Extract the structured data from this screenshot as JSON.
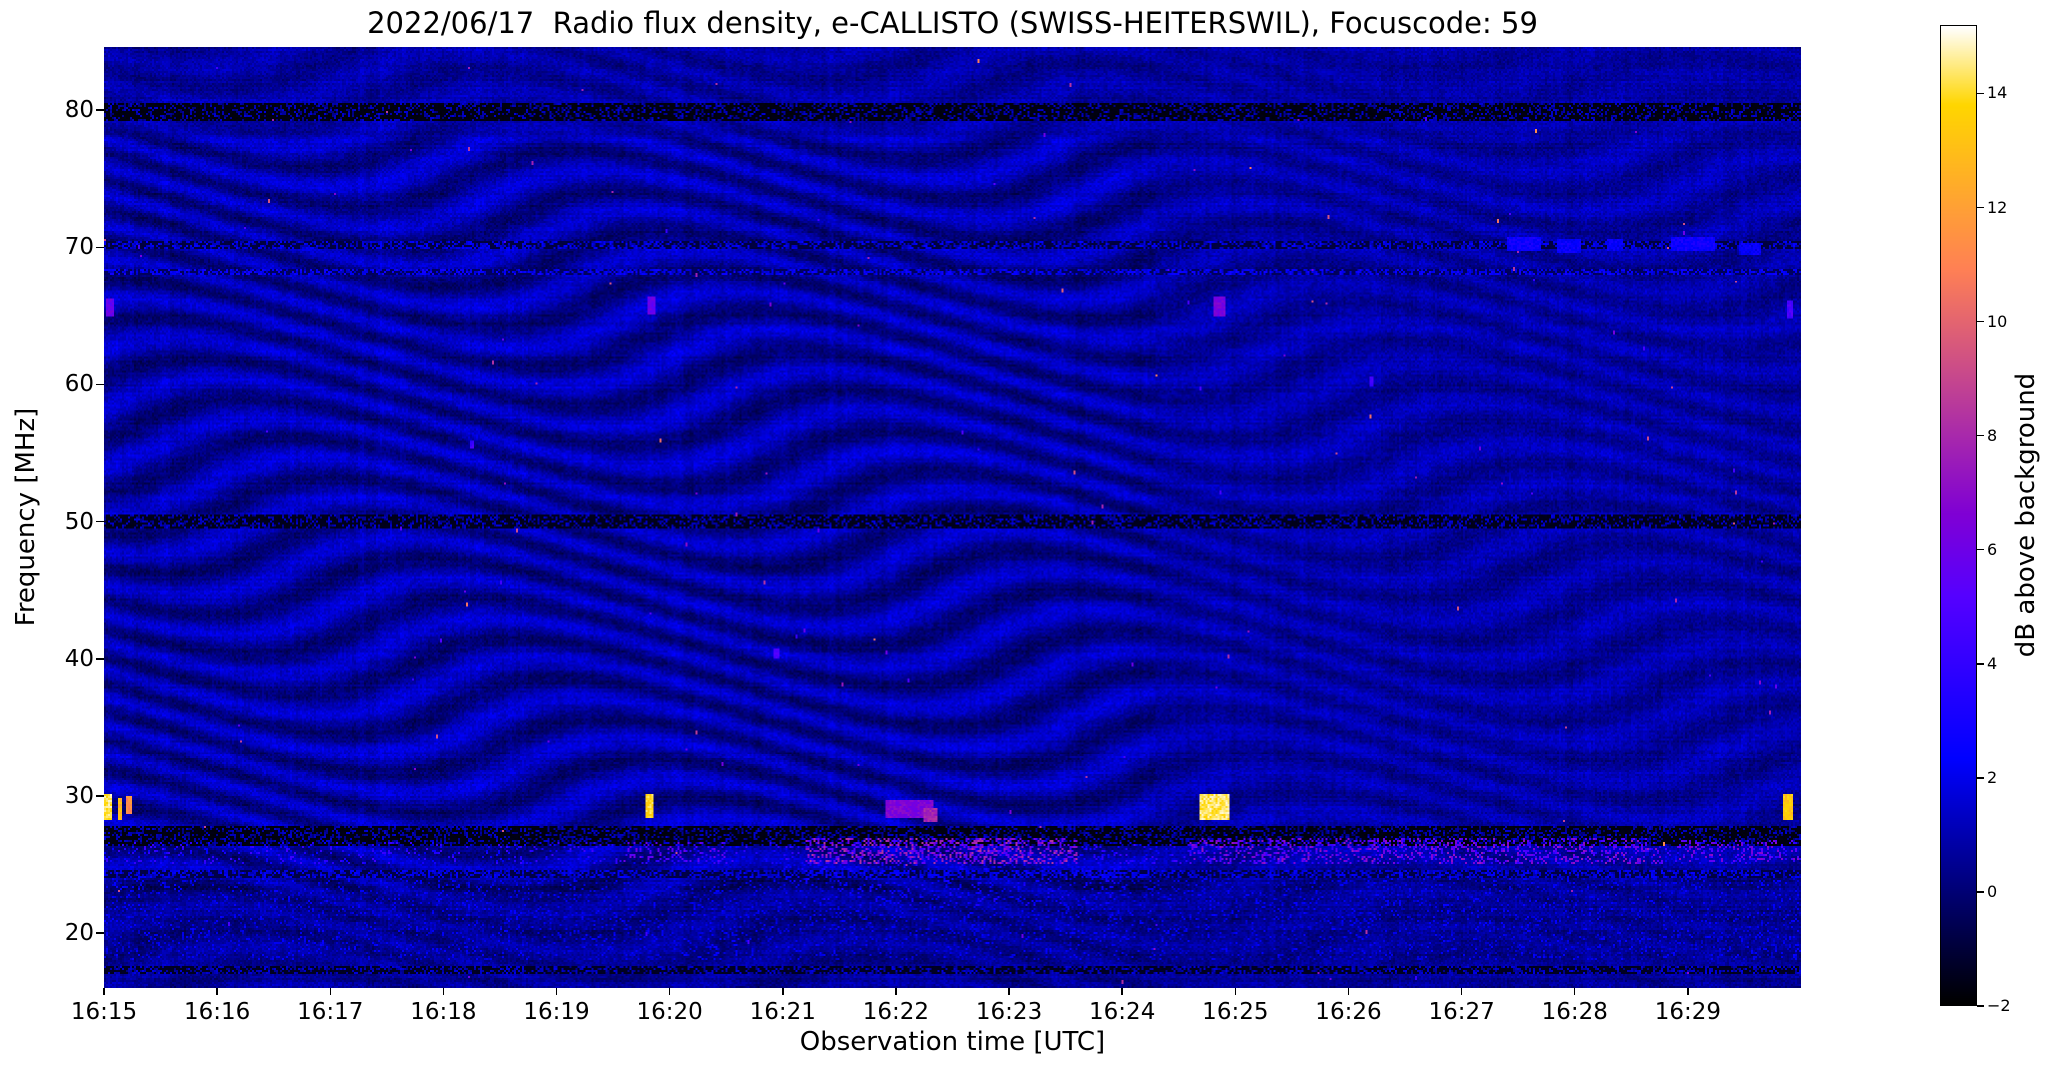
{
  "chart_data": {
    "type": "heatmap",
    "title": "2022/06/17  Radio flux density, e-CALLISTO (SWISS-HEITERSWIL), Focuscode: 59",
    "xlabel": "Observation time [UTC]",
    "ylabel": "Frequency [MHz]",
    "x_ticks": [
      "16:15",
      "16:16",
      "16:17",
      "16:18",
      "16:19",
      "16:20",
      "16:21",
      "16:22",
      "16:23",
      "16:24",
      "16:25",
      "16:26",
      "16:27",
      "16:28",
      "16:29"
    ],
    "x_range_minutes": [
      0,
      15
    ],
    "y_ticks": [
      20,
      30,
      40,
      50,
      60,
      70,
      80
    ],
    "y_range_mhz": [
      16.0,
      84.6
    ],
    "grid": false,
    "colorbar": {
      "label": "dB above background",
      "colormap": "gnuplot2",
      "range_db": [
        -2,
        15.2
      ],
      "ticks": [
        {
          "v": 14,
          "label": "14"
        },
        {
          "v": 12,
          "label": "12"
        },
        {
          "v": 10,
          "label": "10"
        },
        {
          "v": 8,
          "label": "8"
        },
        {
          "v": 6,
          "label": "6"
        },
        {
          "v": 4,
          "label": "4"
        },
        {
          "v": 2,
          "label": "2"
        },
        {
          "v": 0,
          "label": "0"
        },
        {
          "v": -2,
          "label": "−2"
        }
      ]
    },
    "background": {
      "mean_db": 0.75,
      "noise_db": 0.5
    },
    "fringes": {
      "spacing_mhz": 2.75,
      "amp_db": 0.85,
      "sweep_period_min": 5.4
    },
    "dark_bands": [
      {
        "f": 79.8,
        "h": 1.3,
        "db": -1.9,
        "dash": 0.3
      },
      {
        "f": 70.15,
        "h": 0.65,
        "db": -1.1,
        "dash": 0.45
      },
      {
        "f": 68.2,
        "h": 0.5,
        "db": -0.6,
        "dash": 0.5
      },
      {
        "f": 50.0,
        "h": 0.9,
        "db": -1.7,
        "dash": 0.32
      },
      {
        "f": 27.05,
        "h": 1.5,
        "db": -1.9,
        "dash": 0.33
      },
      {
        "f": 24.3,
        "h": 0.5,
        "db": -1.0,
        "dash": 0.5
      },
      {
        "f": 17.3,
        "h": 0.7,
        "db": -1.6,
        "dash": 0.38
      }
    ],
    "activity_regions": [
      {
        "t0": 0,
        "t1": 15,
        "f": 25.9,
        "h": 1.6,
        "density": 0.1,
        "db": 4.5
      },
      {
        "t0": 6.2,
        "t1": 8.6,
        "f": 26.0,
        "h": 1.9,
        "density": 0.38,
        "db": 8.5
      },
      {
        "t0": 9.6,
        "t1": 13.8,
        "f": 26.0,
        "h": 1.8,
        "density": 0.3,
        "db": 7.5
      },
      {
        "t0": 4.6,
        "t1": 5.5,
        "f": 25.9,
        "h": 1.5,
        "density": 0.22,
        "db": 6.5
      },
      {
        "t0": 13.9,
        "t1": 15,
        "f": 26.0,
        "h": 1.6,
        "density": 0.25,
        "db": 7.0
      },
      {
        "t0": 0,
        "t1": 15,
        "f": 21.0,
        "h": 6.0,
        "density": 0.12,
        "db": 2.6
      },
      {
        "t0": 6.0,
        "t1": 9.0,
        "f": 23.5,
        "h": 3.0,
        "density": 0.15,
        "db": 3.2
      }
    ],
    "bright_features": [
      {
        "t": 0.04,
        "w": 0.07,
        "f": 29.2,
        "h": 1.8,
        "db": 15
      },
      {
        "t": 0.14,
        "w": 0.05,
        "f": 29.0,
        "h": 1.6,
        "db": 13.5
      },
      {
        "t": 0.22,
        "w": 0.04,
        "f": 29.3,
        "h": 1.4,
        "db": 12
      },
      {
        "t": 0.05,
        "w": 0.06,
        "f": 65.6,
        "h": 1.4,
        "db": 6.5
      },
      {
        "t": 4.82,
        "w": 0.07,
        "f": 29.3,
        "h": 1.7,
        "db": 14.5
      },
      {
        "t": 4.84,
        "w": 0.07,
        "f": 65.7,
        "h": 1.3,
        "db": 6.5
      },
      {
        "t": 7.12,
        "w": 0.42,
        "f": 29.0,
        "h": 1.3,
        "db": 7.2
      },
      {
        "t": 7.3,
        "w": 0.12,
        "f": 28.6,
        "h": 0.9,
        "db": 8.5
      },
      {
        "t": 9.82,
        "w": 0.26,
        "f": 29.2,
        "h": 2.0,
        "db": 15
      },
      {
        "t": 9.86,
        "w": 0.1,
        "f": 65.7,
        "h": 1.5,
        "db": 7
      },
      {
        "t": 14.88,
        "w": 0.09,
        "f": 29.2,
        "h": 1.9,
        "db": 14
      },
      {
        "t": 14.9,
        "w": 0.05,
        "f": 65.5,
        "h": 1.3,
        "db": 5.5
      },
      {
        "t": 12.55,
        "w": 0.3,
        "f": 70.2,
        "h": 1.0,
        "db": 3.4
      },
      {
        "t": 12.95,
        "w": 0.22,
        "f": 70.1,
        "h": 0.9,
        "db": 3.2
      },
      {
        "t": 13.35,
        "w": 0.14,
        "f": 70.2,
        "h": 0.8,
        "db": 2.9
      },
      {
        "t": 14.05,
        "w": 0.38,
        "f": 70.3,
        "h": 1.0,
        "db": 3.4
      },
      {
        "t": 14.55,
        "w": 0.18,
        "f": 69.9,
        "h": 0.8,
        "db": 3.0
      },
      {
        "t": 5.95,
        "w": 0.05,
        "f": 40.4,
        "h": 0.7,
        "db": 5.5
      },
      {
        "t": 3.25,
        "w": 0.04,
        "f": 55.6,
        "h": 0.6,
        "db": 5
      },
      {
        "t": 11.2,
        "w": 0.04,
        "f": 60.2,
        "h": 0.6,
        "db": 5
      }
    ],
    "hot_pixels": {
      "count": 150,
      "db_min": 4,
      "db_max": 9.5
    }
  }
}
